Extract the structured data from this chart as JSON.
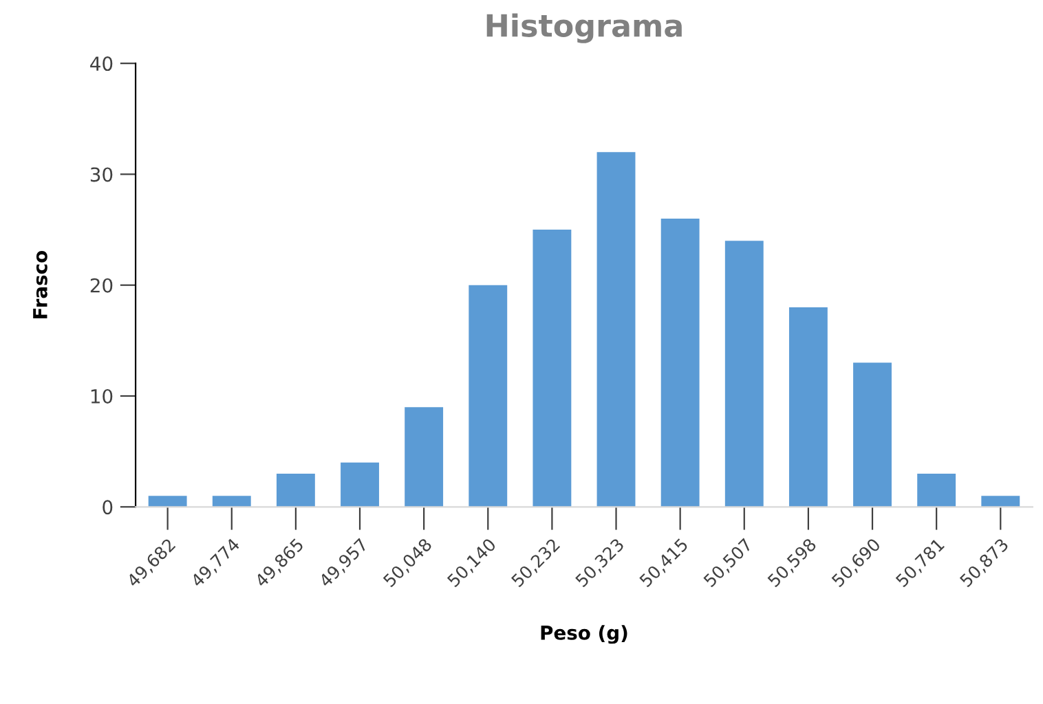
{
  "chart_data": {
    "type": "bar",
    "title": "Histograma",
    "xlabel": "Peso (g)",
    "ylabel": "Frasco",
    "categories": [
      "49,682",
      "49,774",
      "49,865",
      "49,957",
      "50,048",
      "50,140",
      "50,232",
      "50,323",
      "50,415",
      "50,507",
      "50,598",
      "50,690",
      "50,781",
      "50,873"
    ],
    "values": [
      1,
      1,
      3,
      4,
      9,
      20,
      25,
      32,
      26,
      24,
      18,
      13,
      3,
      1
    ],
    "color": "#5b9bd5",
    "ylim": [
      0,
      40
    ],
    "yticks": [
      0,
      10,
      20,
      30,
      40
    ],
    "grid": false,
    "legend": false
  }
}
